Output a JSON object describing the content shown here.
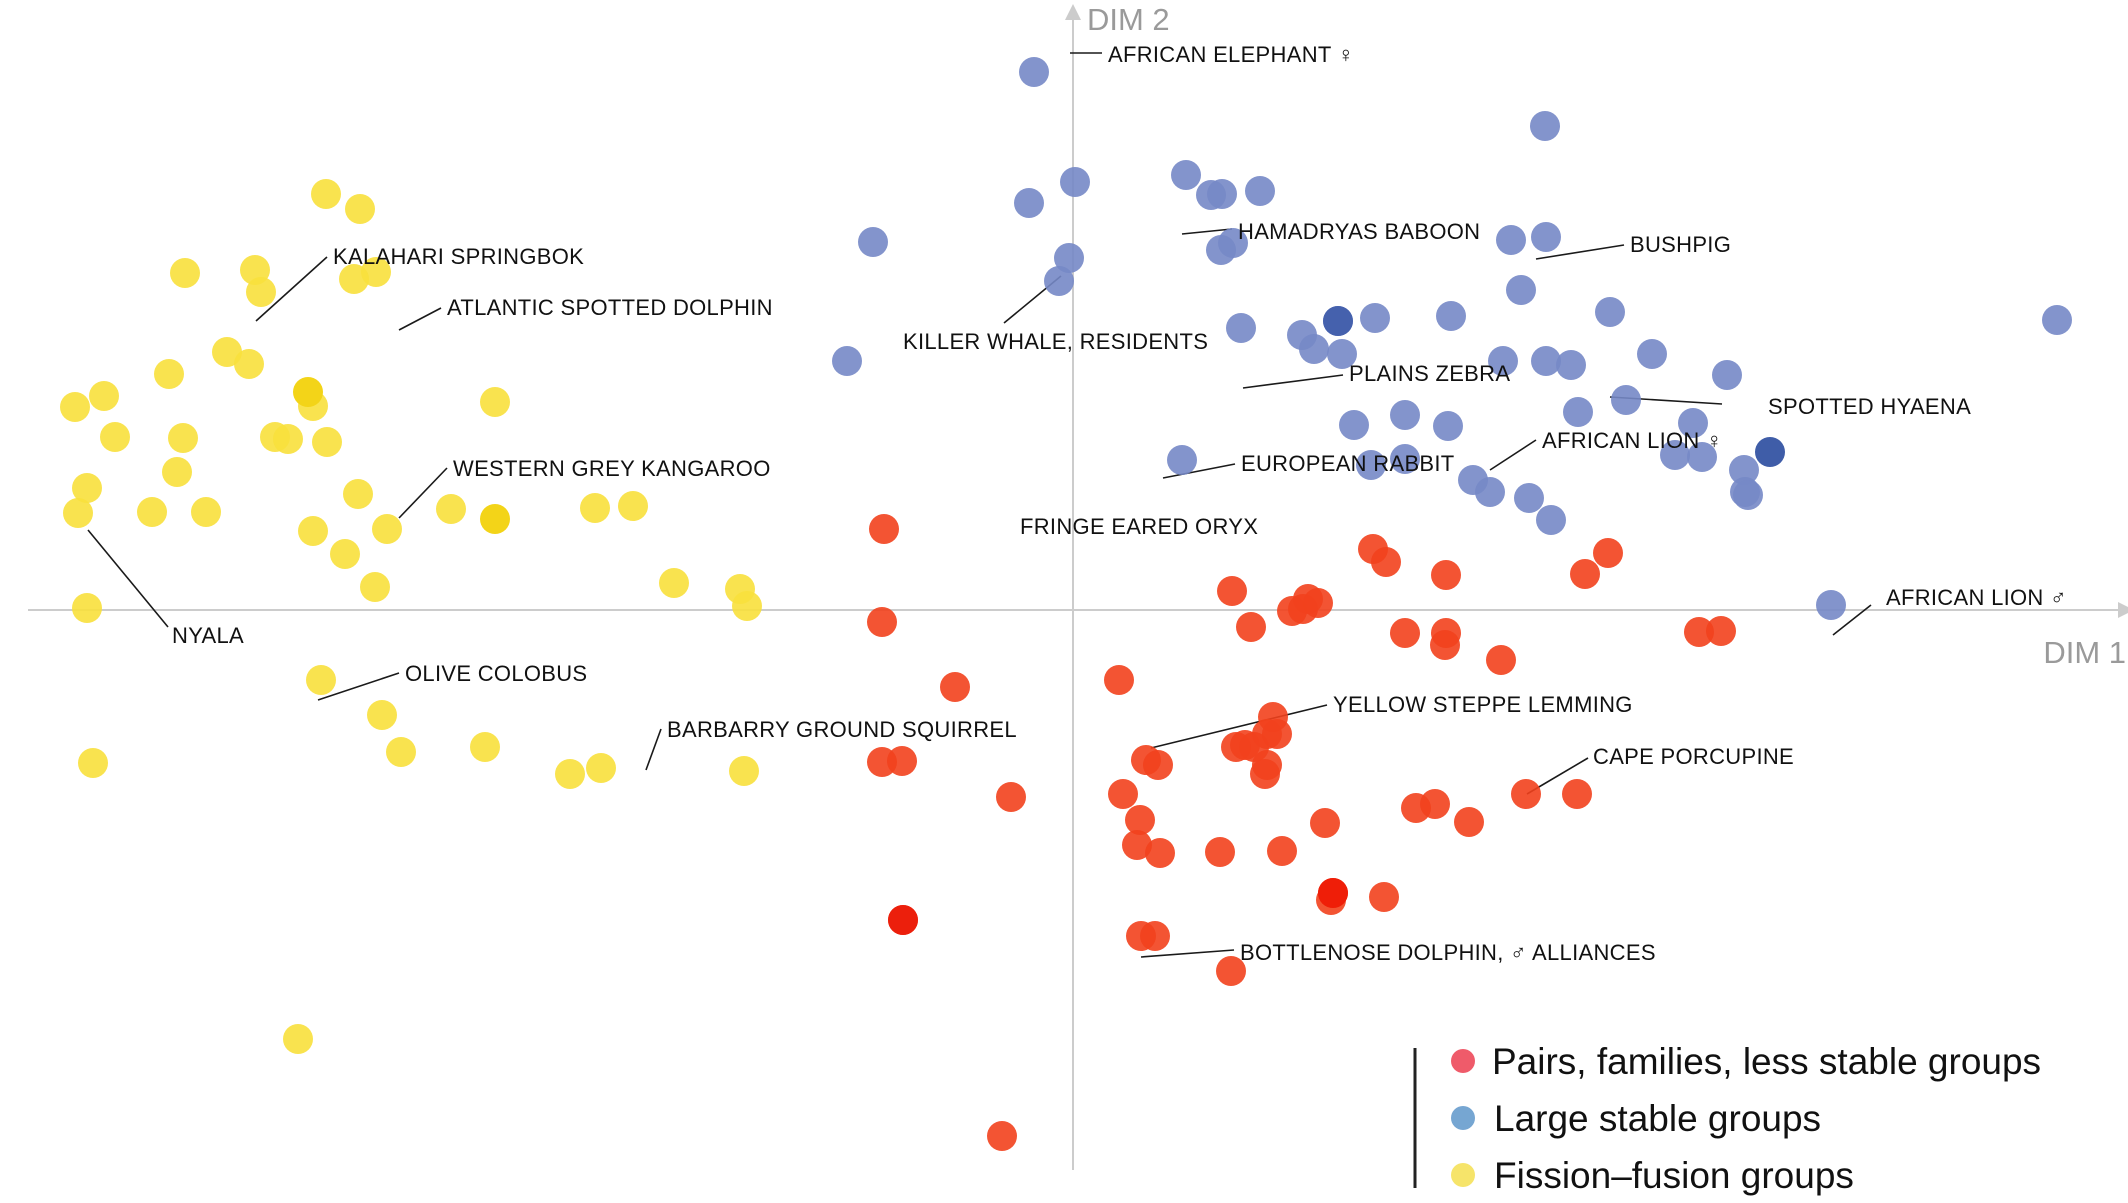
{
  "chart_data": {
    "type": "scatter",
    "xlabel": "DIM 1",
    "ylabel": "DIM 2",
    "xlim": [
      -10.45,
      10.45
    ],
    "ylim": [
      -5.6,
      5.9
    ],
    "grid": false,
    "legend_position": "bottom-right",
    "colors": {
      "pairs": "#f2411d",
      "large": "#7588c6",
      "fission": "#f8e03c",
      "legend_pairs": "#ef5b6a",
      "legend_large": "#76a6d2",
      "legend_fission": "#f6e46a",
      "axis": "#cccccc"
    },
    "series": [
      {
        "key": "pairs",
        "name": "Pairs, families, less stable groups",
        "points": [
          [
            -1.89,
            0.81
          ],
          [
            -1.91,
            -0.12
          ],
          [
            -1.18,
            -0.77
          ],
          [
            -1.91,
            -1.52
          ],
          [
            -1.71,
            -1.51
          ],
          [
            -0.62,
            -1.87
          ],
          [
            -1.7,
            -3.1
          ],
          [
            -0.71,
            -5.26
          ],
          [
            0.46,
            -0.7
          ],
          [
            0.73,
            -1.5
          ],
          [
            0.85,
            -1.55
          ],
          [
            0.5,
            -1.84
          ],
          [
            0.67,
            -2.1
          ],
          [
            0.64,
            -2.35
          ],
          [
            0.87,
            -2.43
          ],
          [
            0.82,
            -3.26
          ],
          [
            0.68,
            -3.26
          ],
          [
            1.59,
            0.19
          ],
          [
            1.78,
            -0.17
          ],
          [
            2.19,
            -0.01
          ],
          [
            2.3,
            0.01
          ],
          [
            2.45,
            0.07
          ],
          [
            2.35,
            0.11
          ],
          [
            1.72,
            -1.35
          ],
          [
            1.94,
            -1.24
          ],
          [
            1.94,
            -1.55
          ],
          [
            1.81,
            -1.37
          ],
          [
            2.04,
            -1.24
          ],
          [
            2.0,
            -1.07
          ],
          [
            1.92,
            -1.64
          ],
          [
            2.52,
            -2.13
          ],
          [
            2.09,
            -2.41
          ],
          [
            1.47,
            -2.42
          ],
          [
            1.63,
            -1.37
          ],
          [
            2.58,
            -2.9
          ],
          [
            3.11,
            -2.87
          ],
          [
            1.58,
            -3.61
          ],
          [
            3.0,
            0.61
          ],
          [
            3.13,
            0.48
          ],
          [
            3.73,
            0.35
          ],
          [
            3.72,
            -0.35
          ],
          [
            3.32,
            -0.23
          ],
          [
            3.73,
            -0.23
          ],
          [
            4.28,
            -0.5
          ],
          [
            5.35,
            0.57
          ],
          [
            5.12,
            0.36
          ],
          [
            4.53,
            -1.84
          ],
          [
            5.04,
            -1.84
          ],
          [
            3.96,
            -2.12
          ],
          [
            3.43,
            -1.98
          ],
          [
            3.62,
            -1.94
          ],
          [
            6.26,
            -0.22
          ],
          [
            6.48,
            -0.21
          ],
          [
            2.6,
            -2.83
          ]
        ]
      },
      {
        "key": "large",
        "name": "Large stable groups",
        "points": [
          [
            -0.39,
            5.38
          ],
          [
            0.02,
            4.28
          ],
          [
            -0.44,
            4.07
          ],
          [
            -2.0,
            3.68
          ],
          [
            -0.04,
            3.52
          ],
          [
            -0.14,
            3.29
          ],
          [
            -2.26,
            2.49
          ],
          [
            1.13,
            4.35
          ],
          [
            1.49,
            4.16
          ],
          [
            1.87,
            4.19
          ],
          [
            1.6,
            3.67
          ],
          [
            1.48,
            3.6
          ],
          [
            1.38,
            4.15
          ],
          [
            1.68,
            2.82
          ],
          [
            4.72,
            4.84
          ],
          [
            4.38,
            3.7
          ],
          [
            4.73,
            3.73
          ],
          [
            4.48,
            3.2
          ],
          [
            3.78,
            2.94
          ],
          [
            4.3,
            2.49
          ],
          [
            4.98,
            2.45
          ],
          [
            4.73,
            2.49
          ],
          [
            5.37,
            2.98
          ],
          [
            5.53,
            2.1
          ],
          [
            5.05,
            1.98
          ],
          [
            5.79,
            2.56
          ],
          [
            6.54,
            2.35
          ],
          [
            6.2,
            1.87
          ],
          [
            6.29,
            1.53
          ],
          [
            3.02,
            2.92
          ],
          [
            2.98,
            1.45
          ],
          [
            2.81,
            1.85
          ],
          [
            2.69,
            2.56
          ],
          [
            3.75,
            1.84
          ],
          [
            3.32,
            1.51
          ],
          [
            3.32,
            1.95
          ],
          [
            2.41,
            2.61
          ],
          [
            2.29,
            2.75
          ],
          [
            1.09,
            1.5
          ],
          [
            6.02,
            1.55
          ],
          [
            4.17,
            1.18
          ],
          [
            4.0,
            1.3
          ],
          [
            4.56,
            1.12
          ],
          [
            4.78,
            0.9
          ],
          [
            6.71,
            1.4
          ],
          [
            6.72,
            1.18
          ],
          [
            6.75,
            1.15
          ],
          [
            7.58,
            0.05
          ],
          [
            9.84,
            2.9
          ],
          [
            2.65,
            2.89
          ]
        ]
      },
      {
        "key": "fission",
        "name": "Fission–fusion groups",
        "points": [
          [
            -7.47,
            4.16
          ],
          [
            -7.13,
            4.01
          ],
          [
            -8.88,
            3.37
          ],
          [
            -8.18,
            3.4
          ],
          [
            -8.46,
            2.58
          ],
          [
            -8.12,
            3.18
          ],
          [
            -6.97,
            3.38
          ],
          [
            -7.19,
            3.31
          ],
          [
            -9.98,
            2.03
          ],
          [
            -9.04,
            2.36
          ],
          [
            -8.24,
            2.46
          ],
          [
            -8.9,
            1.72
          ],
          [
            -7.98,
            1.73
          ],
          [
            -7.85,
            1.71
          ],
          [
            -9.69,
            2.14
          ],
          [
            -7.6,
            2.04
          ],
          [
            -8.96,
            1.38
          ],
          [
            -9.58,
            1.73
          ],
          [
            -7.15,
            1.16
          ],
          [
            -5.78,
            2.08
          ],
          [
            -6.86,
            0.81
          ],
          [
            -7.28,
            0.56
          ],
          [
            -9.95,
            0.97
          ],
          [
            -9.21,
            0.98
          ],
          [
            -8.67,
            0.98
          ],
          [
            -7.6,
            0.79
          ],
          [
            -6.98,
            0.23
          ],
          [
            -6.22,
            1.01
          ],
          [
            -4.78,
            1.02
          ],
          [
            -3.99,
            0.27
          ],
          [
            -3.26,
            0.04
          ],
          [
            -9.86,
            0.02
          ],
          [
            -7.52,
            -0.7
          ],
          [
            -6.72,
            -1.42
          ],
          [
            -6.91,
            -1.05
          ],
          [
            -5.88,
            -1.37
          ],
          [
            -5.03,
            -1.64
          ],
          [
            -9.8,
            -1.53
          ],
          [
            -4.72,
            -1.58
          ],
          [
            -3.29,
            -1.61
          ],
          [
            -4.4,
            1.04
          ],
          [
            -3.33,
            0.21
          ],
          [
            -9.86,
            1.22
          ],
          [
            -7.75,
            -4.29
          ],
          [
            -7.46,
            1.68
          ]
        ]
      }
    ],
    "highlights": [
      {
        "series": "pairs",
        "point": [
          -1.7,
          -3.1
        ],
        "color": "#ec1f0c"
      },
      {
        "series": "pairs",
        "point": [
          2.6,
          -2.83
        ],
        "color": "#ef1e08"
      },
      {
        "series": "large",
        "point": [
          2.65,
          2.89
        ],
        "color": "#4561ad"
      },
      {
        "series": "large",
        "point": [
          6.97,
          1.58
        ],
        "color": "#3f5da8"
      },
      {
        "series": "fission",
        "point": [
          -7.65,
          2.18
        ],
        "color": "#f3d418"
      },
      {
        "series": "fission",
        "point": [
          -5.78,
          0.91
        ],
        "color": "#f3d418"
      }
    ],
    "annotations": [
      {
        "text": "AFRICAN ELEPHANT ♀",
        "point": [
          -0.39,
          5.38
        ]
      },
      {
        "text": "HAMADRYAS BABOON",
        "point": [
          1.09,
          3.69
        ]
      },
      {
        "text": "BUSHPIG",
        "point": [
          4.38,
          3.2
        ]
      },
      {
        "text": "KILLER WHALE, RESIDENTS",
        "point": [
          -0.14,
          3.29
        ]
      },
      {
        "text": "PLAINS ZEBRA",
        "point": [
          1.7,
          2.1
        ]
      },
      {
        "text": "SPOTTED HYAENA",
        "point": [
          5.37,
          2.0
        ]
      },
      {
        "text": "AFRICAN LION ♀",
        "point": [
          4.17,
          1.4
        ]
      },
      {
        "text": "EUROPEAN RABBIT",
        "point": [
          0.9,
          1.29
        ]
      },
      {
        "text": "FRINGE EARED ORYX",
        "point": [
          -0.78,
          0.81
        ]
      },
      {
        "text": "AFRICAN LION ♂",
        "point": [
          7.55,
          -0.22
        ]
      },
      {
        "text": "YELLOW STEPPE LEMMING",
        "point": [
          0.78,
          -1.38
        ]
      },
      {
        "text": "CAPE PORCUPINE",
        "point": [
          4.54,
          -2.02
        ]
      },
      {
        "text": "BOTTLENOSE DOLPHIN, ♂ ALLIANCES",
        "point": [
          0.68,
          -3.26
        ]
      },
      {
        "text": "KALAHARI SPRINGBOK",
        "point": [
          -8.12,
          3.36
        ]
      },
      {
        "text": "ATLANTIC SPOTTED DOLPHIN",
        "point": [
          -6.92,
          3.38
        ]
      },
      {
        "text": "WESTERN GREY KANGAROO",
        "point": [
          -6.94,
          0.92
        ]
      },
      {
        "text": "NYALA",
        "point": [
          -9.86,
          0.9
        ]
      },
      {
        "text": "OLIVE COLOBUS",
        "point": [
          -7.45,
          -0.9
        ]
      },
      {
        "text": "BARBARRY GROUND SQUIRREL",
        "point": [
          -4.27,
          -1.4
        ]
      }
    ]
  }
}
